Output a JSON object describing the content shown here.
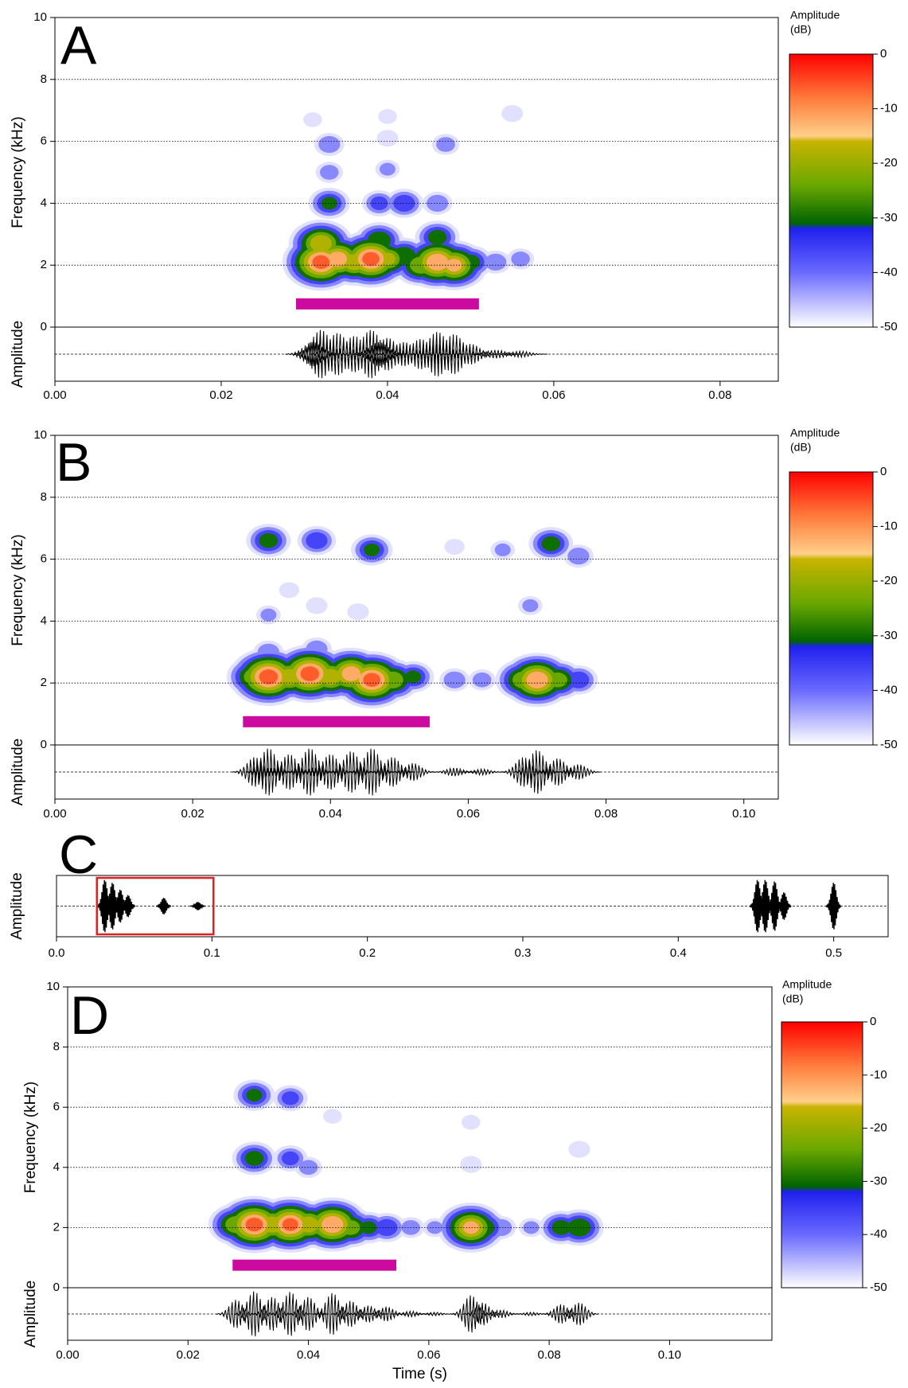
{
  "chart_data": [
    {
      "type": "spectrogram",
      "panel_label": "A",
      "ylabel": "Frequency (kHz)",
      "amp_label": "Amplitude",
      "xlim": [
        0,
        0.087
      ],
      "xticks": [
        {
          "value": 0,
          "label": "0.00"
        },
        0.02,
        0.04,
        0.06,
        0.08
      ],
      "ylim": [
        0,
        10
      ],
      "yticks": [
        0,
        2,
        4,
        6,
        8,
        10
      ],
      "grid": true,
      "selection": {
        "start": 0.029,
        "end": 0.051,
        "color": "#cc0aa0"
      },
      "spots": [
        {
          "t": 0.031,
          "f": 2.5,
          "db": -25
        },
        {
          "t": 0.032,
          "f": 2.1,
          "db": -5
        },
        {
          "t": 0.034,
          "f": 2.2,
          "db": -10
        },
        {
          "t": 0.036,
          "f": 2.1,
          "db": -15
        },
        {
          "t": 0.038,
          "f": 2.2,
          "db": -5
        },
        {
          "t": 0.04,
          "f": 2.2,
          "db": -18
        },
        {
          "t": 0.042,
          "f": 2.3,
          "db": -25
        },
        {
          "t": 0.044,
          "f": 2.0,
          "db": -20
        },
        {
          "t": 0.046,
          "f": 2.1,
          "db": -8
        },
        {
          "t": 0.048,
          "f": 2.0,
          "db": -12
        },
        {
          "t": 0.05,
          "f": 2.1,
          "db": -28
        },
        {
          "t": 0.053,
          "f": 2.1,
          "db": -38
        },
        {
          "t": 0.056,
          "f": 2.2,
          "db": -40
        },
        {
          "t": 0.032,
          "f": 2.7,
          "db": -14
        },
        {
          "t": 0.039,
          "f": 2.8,
          "db": -25
        },
        {
          "t": 0.046,
          "f": 2.9,
          "db": -28
        },
        {
          "t": 0.033,
          "f": 4.0,
          "db": -30
        },
        {
          "t": 0.039,
          "f": 4.0,
          "db": -35
        },
        {
          "t": 0.042,
          "f": 4.0,
          "db": -32
        },
        {
          "t": 0.046,
          "f": 4.0,
          "db": -38
        },
        {
          "t": 0.033,
          "f": 5.0,
          "db": -40
        },
        {
          "t": 0.04,
          "f": 5.1,
          "db": -42
        },
        {
          "t": 0.033,
          "f": 5.9,
          "db": -38
        },
        {
          "t": 0.04,
          "f": 6.1,
          "db": -44
        },
        {
          "t": 0.047,
          "f": 5.9,
          "db": -40
        },
        {
          "t": 0.031,
          "f": 6.7,
          "db": -46
        },
        {
          "t": 0.04,
          "f": 6.8,
          "db": -46
        },
        {
          "t": 0.055,
          "f": 6.9,
          "db": -44
        }
      ],
      "colorbar": {
        "title": [
          "Amplitude",
          "(dB)"
        ],
        "lim": [
          -50,
          0
        ],
        "ticks": [
          0,
          -10,
          -20,
          -30,
          -40,
          -50
        ],
        "colormap": {
          "values": [
            0,
            -8,
            -15,
            -16,
            -24,
            -31,
            -32,
            -40,
            -50
          ],
          "colors": [
            "#ff0000",
            "#ff7a3a",
            "#ffd08a",
            "#c8b400",
            "#6aa800",
            "#006400",
            "#2020ee",
            "#6a6aff",
            "#ffffff"
          ]
        }
      }
    },
    {
      "type": "spectrogram",
      "panel_label": "B",
      "ylabel": "Frequency (kHz)",
      "amp_label": "Amplitude",
      "xlim": [
        0,
        0.105
      ],
      "xticks": [
        {
          "value": 0,
          "label": "0.00"
        },
        0.02,
        0.04,
        0.06,
        0.08,
        {
          "value": 0.1,
          "label": "0.10"
        }
      ],
      "ylim": [
        0,
        10
      ],
      "yticks": [
        0,
        2,
        4,
        6,
        8,
        10
      ],
      "grid": true,
      "selection": {
        "start": 0.0273,
        "end": 0.0544,
        "color": "#cc0aa0"
      },
      "spots": [
        {
          "t": 0.029,
          "f": 2.2,
          "db": -20
        },
        {
          "t": 0.031,
          "f": 2.2,
          "db": -4
        },
        {
          "t": 0.034,
          "f": 2.2,
          "db": -15
        },
        {
          "t": 0.037,
          "f": 2.3,
          "db": -4
        },
        {
          "t": 0.04,
          "f": 2.2,
          "db": -15
        },
        {
          "t": 0.043,
          "f": 2.3,
          "db": -10
        },
        {
          "t": 0.046,
          "f": 2.1,
          "db": -5
        },
        {
          "t": 0.049,
          "f": 2.1,
          "db": -20
        },
        {
          "t": 0.052,
          "f": 2.2,
          "db": -30
        },
        {
          "t": 0.058,
          "f": 2.1,
          "db": -38
        },
        {
          "t": 0.062,
          "f": 2.1,
          "db": -40
        },
        {
          "t": 0.068,
          "f": 2.1,
          "db": -20
        },
        {
          "t": 0.07,
          "f": 2.1,
          "db": -8
        },
        {
          "t": 0.073,
          "f": 2.1,
          "db": -22
        },
        {
          "t": 0.076,
          "f": 2.1,
          "db": -32
        },
        {
          "t": 0.031,
          "f": 6.6,
          "db": -28
        },
        {
          "t": 0.038,
          "f": 6.6,
          "db": -32
        },
        {
          "t": 0.046,
          "f": 6.3,
          "db": -30
        },
        {
          "t": 0.058,
          "f": 6.4,
          "db": -45
        },
        {
          "t": 0.065,
          "f": 6.3,
          "db": -42
        },
        {
          "t": 0.072,
          "f": 6.5,
          "db": -28
        },
        {
          "t": 0.076,
          "f": 6.1,
          "db": -38
        },
        {
          "t": 0.031,
          "f": 4.2,
          "db": -42
        },
        {
          "t": 0.038,
          "f": 4.5,
          "db": -44
        },
        {
          "t": 0.044,
          "f": 4.3,
          "db": -44
        },
        {
          "t": 0.069,
          "f": 4.5,
          "db": -42
        },
        {
          "t": 0.031,
          "f": 3.0,
          "db": -38
        },
        {
          "t": 0.038,
          "f": 3.1,
          "db": -38
        },
        {
          "t": 0.034,
          "f": 5.0,
          "db": -45
        }
      ],
      "colorbar": {
        "title": [
          "Amplitude",
          "(dB)"
        ],
        "lim": [
          -50,
          0
        ],
        "ticks": [
          0,
          -10,
          -20,
          -30,
          -40,
          -50
        ],
        "colormap": {
          "values": [
            0,
            -8,
            -15,
            -16,
            -24,
            -31,
            -32,
            -40,
            -50
          ],
          "colors": [
            "#ff0000",
            "#ff7a3a",
            "#ffd08a",
            "#c8b400",
            "#6aa800",
            "#006400",
            "#2020ee",
            "#6a6aff",
            "#ffffff"
          ]
        }
      }
    },
    {
      "type": "oscillogram",
      "panel_label": "C",
      "amp_label": "Amplitude",
      "xlim": [
        0,
        0.535
      ],
      "xticks": [
        {
          "value": 0,
          "label": "0.0"
        },
        0.1,
        0.2,
        0.3,
        0.4,
        0.5
      ],
      "highlight": {
        "start": 0.026,
        "end": 0.101,
        "color": "#e02020"
      },
      "pulses": {
        "t": [
          0.031,
          0.036,
          0.041,
          0.046,
          0.069,
          0.091,
          0.451,
          0.456,
          0.462,
          0.468,
          0.5
        ],
        "a": [
          0.95,
          0.85,
          0.6,
          0.4,
          0.3,
          0.15,
          0.95,
          0.95,
          0.9,
          0.5,
          0.85
        ]
      }
    },
    {
      "type": "spectrogram",
      "panel_label": "D",
      "ylabel": "Frequency (kHz)",
      "amp_label": "Amplitude",
      "xlabel": "Time (s)",
      "xlim": [
        0,
        0.117
      ],
      "xticks": [
        {
          "value": 0,
          "label": "0.00"
        },
        0.02,
        0.04,
        0.06,
        0.08,
        {
          "value": 0.1,
          "label": "0.10"
        }
      ],
      "ylim": [
        0,
        10
      ],
      "yticks": [
        0,
        2,
        4,
        6,
        8,
        10
      ],
      "grid": true,
      "selection": {
        "start": 0.0274,
        "end": 0.0546,
        "color": "#cc0aa0"
      },
      "spots": [
        {
          "t": 0.028,
          "f": 2.1,
          "db": -20
        },
        {
          "t": 0.031,
          "f": 2.1,
          "db": -5
        },
        {
          "t": 0.034,
          "f": 2.1,
          "db": -15
        },
        {
          "t": 0.037,
          "f": 2.1,
          "db": -6
        },
        {
          "t": 0.04,
          "f": 2.1,
          "db": -15
        },
        {
          "t": 0.044,
          "f": 2.1,
          "db": -8
        },
        {
          "t": 0.047,
          "f": 2.0,
          "db": -22
        },
        {
          "t": 0.05,
          "f": 2.0,
          "db": -30
        },
        {
          "t": 0.053,
          "f": 2.0,
          "db": -32
        },
        {
          "t": 0.057,
          "f": 2.0,
          "db": -40
        },
        {
          "t": 0.061,
          "f": 2.0,
          "db": -42
        },
        {
          "t": 0.067,
          "f": 2.0,
          "db": -12
        },
        {
          "t": 0.069,
          "f": 2.0,
          "db": -25
        },
        {
          "t": 0.072,
          "f": 2.0,
          "db": -38
        },
        {
          "t": 0.077,
          "f": 2.0,
          "db": -42
        },
        {
          "t": 0.082,
          "f": 2.0,
          "db": -28
        },
        {
          "t": 0.085,
          "f": 2.0,
          "db": -25
        },
        {
          "t": 0.031,
          "f": 4.3,
          "db": -28
        },
        {
          "t": 0.037,
          "f": 4.3,
          "db": -35
        },
        {
          "t": 0.04,
          "f": 4.0,
          "db": -40
        },
        {
          "t": 0.067,
          "f": 4.1,
          "db": -44
        },
        {
          "t": 0.085,
          "f": 4.6,
          "db": -44
        },
        {
          "t": 0.031,
          "f": 6.4,
          "db": -30
        },
        {
          "t": 0.037,
          "f": 6.3,
          "db": -35
        },
        {
          "t": 0.044,
          "f": 5.7,
          "db": -46
        },
        {
          "t": 0.067,
          "f": 5.5,
          "db": -46
        }
      ],
      "colorbar": {
        "title": [
          "Amplitude",
          "(dB)"
        ],
        "lim": [
          -50,
          0
        ],
        "ticks": [
          0,
          -10,
          -20,
          -30,
          -40,
          -50
        ],
        "colormap": {
          "values": [
            0,
            -8,
            -15,
            -16,
            -24,
            -31,
            -32,
            -40,
            -50
          ],
          "colors": [
            "#ff0000",
            "#ff7a3a",
            "#ffd08a",
            "#c8b400",
            "#6aa800",
            "#006400",
            "#2020ee",
            "#6a6aff",
            "#ffffff"
          ]
        }
      }
    }
  ]
}
